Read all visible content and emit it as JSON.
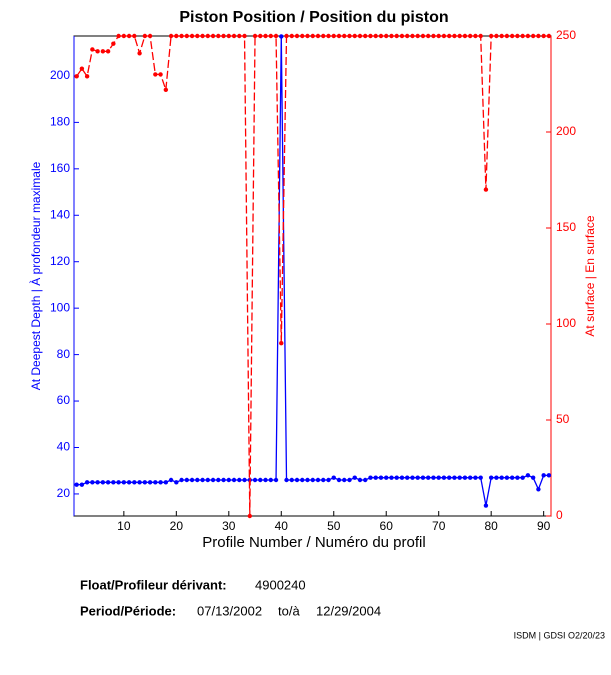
{
  "chart_data": {
    "type": "line",
    "title": "Piston Position / Position du piston",
    "x_label": "Profile Number / Numéro du profil",
    "y_label": "At Deepest Depth | À profondeur maximale",
    "y2_label": "At surface | En surface",
    "x": [
      1,
      2,
      3,
      4,
      5,
      6,
      7,
      8,
      9,
      10,
      11,
      12,
      13,
      14,
      15,
      16,
      17,
      18,
      19,
      20,
      21,
      22,
      23,
      24,
      25,
      26,
      27,
      28,
      29,
      30,
      31,
      32,
      33,
      34,
      35,
      36,
      37,
      38,
      39,
      40,
      41,
      42,
      43,
      44,
      45,
      46,
      47,
      48,
      49,
      50,
      51,
      52,
      53,
      54,
      55,
      56,
      57,
      58,
      59,
      60,
      61,
      62,
      63,
      64,
      65,
      66,
      67,
      68,
      69,
      70,
      71,
      72,
      73,
      74,
      75,
      76,
      77,
      78,
      79,
      80,
      81,
      82,
      83,
      84,
      85,
      86,
      87,
      88,
      89,
      90,
      91
    ],
    "series": [
      {
        "name": "At Deepest Depth",
        "color": "#0000ff",
        "axis": "y",
        "values": [
          24,
          24,
          25,
          25,
          25,
          25,
          25,
          25,
          25,
          25,
          25,
          25,
          25,
          25,
          25,
          25,
          25,
          25,
          26,
          25,
          26,
          26,
          26,
          26,
          26,
          26,
          26,
          26,
          26,
          26,
          26,
          26,
          26,
          26,
          26,
          26,
          26,
          26,
          26,
          217,
          26,
          26,
          26,
          26,
          26,
          26,
          26,
          26,
          26,
          27,
          26,
          26,
          26,
          27,
          26,
          26,
          27,
          27,
          27,
          27,
          27,
          27,
          27,
          27,
          27,
          27,
          27,
          27,
          27,
          27,
          27,
          27,
          27,
          27,
          27,
          27,
          27,
          27,
          15,
          27,
          27,
          27,
          27,
          27,
          27,
          27,
          28,
          27,
          22,
          28,
          28
        ]
      },
      {
        "name": "At surface",
        "color": "#ff0000",
        "axis": "y2",
        "values": [
          229,
          233,
          229,
          243,
          242,
          242,
          242,
          246,
          250,
          250,
          250,
          250,
          241,
          250,
          250,
          230,
          230,
          222,
          250,
          250,
          250,
          250,
          250,
          250,
          250,
          250,
          250,
          250,
          250,
          250,
          250,
          250,
          250,
          0,
          250,
          250,
          250,
          250,
          250,
          90,
          250,
          250,
          250,
          250,
          250,
          250,
          250,
          250,
          250,
          250,
          250,
          250,
          250,
          250,
          250,
          250,
          250,
          250,
          250,
          250,
          250,
          250,
          250,
          250,
          250,
          250,
          250,
          250,
          250,
          250,
          250,
          250,
          250,
          250,
          250,
          250,
          250,
          250,
          170,
          250,
          250,
          250,
          250,
          250,
          250,
          250,
          250,
          250,
          250,
          250,
          250
        ]
      }
    ],
    "xlim": [
      0.5,
      91.4
    ],
    "xticks": [
      10,
      20,
      30,
      40,
      50,
      60,
      70,
      80,
      90
    ],
    "ylim": [
      10.5,
      217.2
    ],
    "yticks": [
      20,
      40,
      60,
      80,
      100,
      120,
      140,
      160,
      180,
      200
    ],
    "y2lim": [
      0,
      250
    ],
    "y2ticks": [
      0,
      50,
      100,
      150,
      200,
      250
    ]
  },
  "footer": {
    "float_label": "Float/Profileur dérivant:",
    "float_id": "4900240",
    "period_label": "Period/Période:",
    "start": "07/13/2002",
    "to": "to/à",
    "end": "12/29/2004",
    "credit": "ISDM | GDSI O2/20/23"
  }
}
